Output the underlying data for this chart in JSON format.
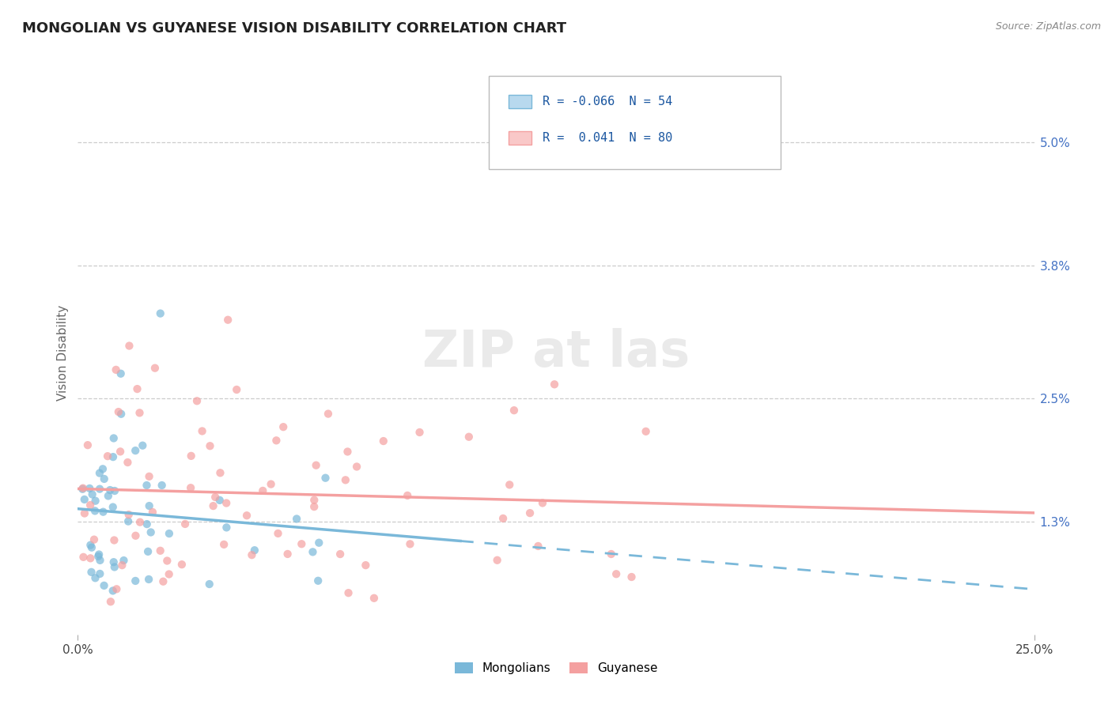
{
  "title": "MONGOLIAN VS GUYANESE VISION DISABILITY CORRELATION CHART",
  "source": "Source: ZipAtlas.com",
  "ylabel": "Vision Disability",
  "xlim": [
    0.0,
    0.25
  ],
  "ylim": [
    0.002,
    0.057
  ],
  "xtick_positions": [
    0.0,
    0.25
  ],
  "xtick_labels": [
    "0.0%",
    "25.0%"
  ],
  "ytick_positions": [
    0.013,
    0.025,
    0.038,
    0.05
  ],
  "ytick_labels": [
    "1.3%",
    "2.5%",
    "3.8%",
    "5.0%"
  ],
  "mongolian_R": -0.066,
  "mongolian_N": 54,
  "guyanese_R": 0.041,
  "guyanese_N": 80,
  "mongolian_color": "#7ab8d9",
  "guyanese_color": "#f4a0a0",
  "mongolian_color_light": "#b8d9ee",
  "guyanese_color_light": "#f9c8c8",
  "background_color": "#ffffff",
  "title_fontsize": 13,
  "axis_label_color": "#4472c4",
  "legend_text_color": "#1a56a0",
  "grid_color": "#cccccc",
  "watermark_color": "#dddddd"
}
